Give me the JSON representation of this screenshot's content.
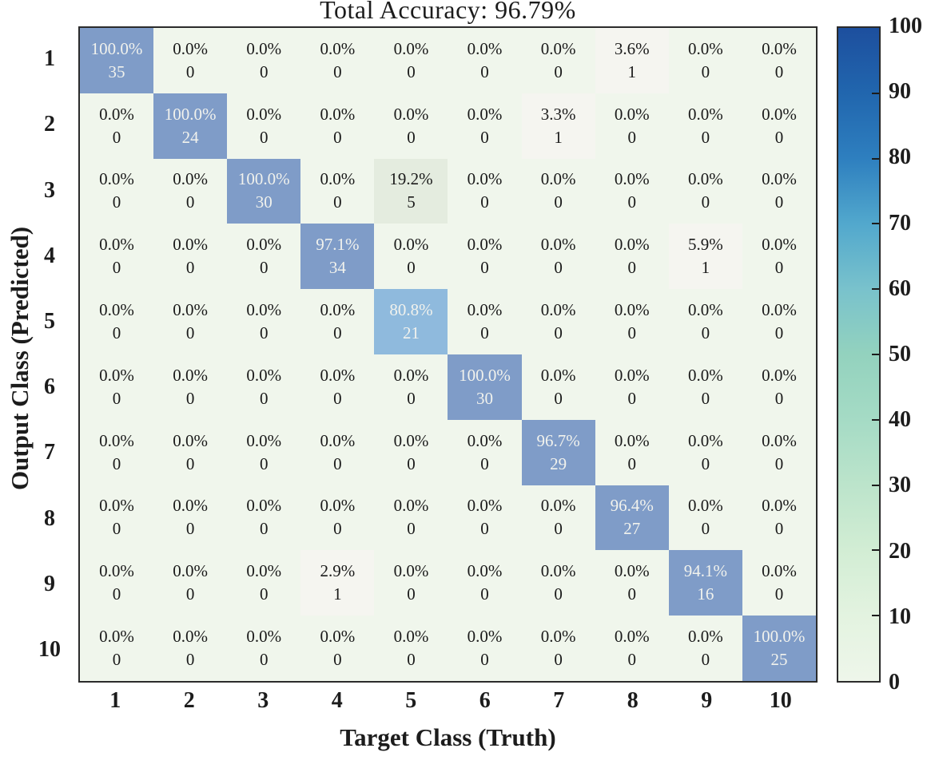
{
  "colors": {
    "diag_blue": "#7f9cc8",
    "mid_blue": "#8fbadd",
    "pale_green": "#e4ecdf",
    "tiny_offwhite": "#f5f5f0",
    "zero_bg": "#f0f6ec",
    "cell_text_light": "#f1f2ed",
    "cell_text_dark": "#1a1a1a",
    "colorbar_stops_top_to_bottom": [
      "#1d4f9e",
      "#2166ae",
      "#2e7fbf",
      "#52a8cd",
      "#79c2cc",
      "#93d2be",
      "#a5dbc5",
      "#bce4cb",
      "#d2edd4",
      "#e3f3e0",
      "#eef6ea"
    ]
  },
  "chart_data": {
    "type": "heatmap",
    "title": "Total Accuracy: 96.79%",
    "xlabel": "Target Class (Truth)",
    "ylabel": "Output Class (Predicted)",
    "x_tick_labels": [
      "1",
      "2",
      "3",
      "4",
      "5",
      "6",
      "7",
      "8",
      "9",
      "10"
    ],
    "y_tick_labels": [
      "1",
      "2",
      "3",
      "4",
      "5",
      "6",
      "7",
      "8",
      "9",
      "10"
    ],
    "colorbar": {
      "min": 0,
      "max": 100,
      "ticks": [
        0,
        10,
        20,
        30,
        40,
        50,
        60,
        70,
        80,
        90,
        100
      ]
    },
    "cells": [
      [
        {
          "p": "100.0%",
          "n": "35",
          "v": 100
        },
        {
          "p": "0.0%",
          "n": "0",
          "v": 0
        },
        {
          "p": "0.0%",
          "n": "0",
          "v": 0
        },
        {
          "p": "0.0%",
          "n": "0",
          "v": 0
        },
        {
          "p": "0.0%",
          "n": "0",
          "v": 0
        },
        {
          "p": "0.0%",
          "n": "0",
          "v": 0
        },
        {
          "p": "0.0%",
          "n": "0",
          "v": 0
        },
        {
          "p": "3.6%",
          "n": "1",
          "v": 3.6
        },
        {
          "p": "0.0%",
          "n": "0",
          "v": 0
        },
        {
          "p": "0.0%",
          "n": "0",
          "v": 0
        }
      ],
      [
        {
          "p": "0.0%",
          "n": "0",
          "v": 0
        },
        {
          "p": "100.0%",
          "n": "24",
          "v": 100
        },
        {
          "p": "0.0%",
          "n": "0",
          "v": 0
        },
        {
          "p": "0.0%",
          "n": "0",
          "v": 0
        },
        {
          "p": "0.0%",
          "n": "0",
          "v": 0
        },
        {
          "p": "0.0%",
          "n": "0",
          "v": 0
        },
        {
          "p": "3.3%",
          "n": "1",
          "v": 3.3
        },
        {
          "p": "0.0%",
          "n": "0",
          "v": 0
        },
        {
          "p": "0.0%",
          "n": "0",
          "v": 0
        },
        {
          "p": "0.0%",
          "n": "0",
          "v": 0
        }
      ],
      [
        {
          "p": "0.0%",
          "n": "0",
          "v": 0
        },
        {
          "p": "0.0%",
          "n": "0",
          "v": 0
        },
        {
          "p": "100.0%",
          "n": "30",
          "v": 100
        },
        {
          "p": "0.0%",
          "n": "0",
          "v": 0
        },
        {
          "p": "19.2%",
          "n": "5",
          "v": 19.2
        },
        {
          "p": "0.0%",
          "n": "0",
          "v": 0
        },
        {
          "p": "0.0%",
          "n": "0",
          "v": 0
        },
        {
          "p": "0.0%",
          "n": "0",
          "v": 0
        },
        {
          "p": "0.0%",
          "n": "0",
          "v": 0
        },
        {
          "p": "0.0%",
          "n": "0",
          "v": 0
        }
      ],
      [
        {
          "p": "0.0%",
          "n": "0",
          "v": 0
        },
        {
          "p": "0.0%",
          "n": "0",
          "v": 0
        },
        {
          "p": "0.0%",
          "n": "0",
          "v": 0
        },
        {
          "p": "97.1%",
          "n": "34",
          "v": 97.1
        },
        {
          "p": "0.0%",
          "n": "0",
          "v": 0
        },
        {
          "p": "0.0%",
          "n": "0",
          "v": 0
        },
        {
          "p": "0.0%",
          "n": "0",
          "v": 0
        },
        {
          "p": "0.0%",
          "n": "0",
          "v": 0
        },
        {
          "p": "5.9%",
          "n": "1",
          "v": 5.9
        },
        {
          "p": "0.0%",
          "n": "0",
          "v": 0
        }
      ],
      [
        {
          "p": "0.0%",
          "n": "0",
          "v": 0
        },
        {
          "p": "0.0%",
          "n": "0",
          "v": 0
        },
        {
          "p": "0.0%",
          "n": "0",
          "v": 0
        },
        {
          "p": "0.0%",
          "n": "0",
          "v": 0
        },
        {
          "p": "80.8%",
          "n": "21",
          "v": 80.8
        },
        {
          "p": "0.0%",
          "n": "0",
          "v": 0
        },
        {
          "p": "0.0%",
          "n": "0",
          "v": 0
        },
        {
          "p": "0.0%",
          "n": "0",
          "v": 0
        },
        {
          "p": "0.0%",
          "n": "0",
          "v": 0
        },
        {
          "p": "0.0%",
          "n": "0",
          "v": 0
        }
      ],
      [
        {
          "p": "0.0%",
          "n": "0",
          "v": 0
        },
        {
          "p": "0.0%",
          "n": "0",
          "v": 0
        },
        {
          "p": "0.0%",
          "n": "0",
          "v": 0
        },
        {
          "p": "0.0%",
          "n": "0",
          "v": 0
        },
        {
          "p": "0.0%",
          "n": "0",
          "v": 0
        },
        {
          "p": "100.0%",
          "n": "30",
          "v": 100
        },
        {
          "p": "0.0%",
          "n": "0",
          "v": 0
        },
        {
          "p": "0.0%",
          "n": "0",
          "v": 0
        },
        {
          "p": "0.0%",
          "n": "0",
          "v": 0
        },
        {
          "p": "0.0%",
          "n": "0",
          "v": 0
        }
      ],
      [
        {
          "p": "0.0%",
          "n": "0",
          "v": 0
        },
        {
          "p": "0.0%",
          "n": "0",
          "v": 0
        },
        {
          "p": "0.0%",
          "n": "0",
          "v": 0
        },
        {
          "p": "0.0%",
          "n": "0",
          "v": 0
        },
        {
          "p": "0.0%",
          "n": "0",
          "v": 0
        },
        {
          "p": "0.0%",
          "n": "0",
          "v": 0
        },
        {
          "p": "96.7%",
          "n": "29",
          "v": 96.7
        },
        {
          "p": "0.0%",
          "n": "0",
          "v": 0
        },
        {
          "p": "0.0%",
          "n": "0",
          "v": 0
        },
        {
          "p": "0.0%",
          "n": "0",
          "v": 0
        }
      ],
      [
        {
          "p": "0.0%",
          "n": "0",
          "v": 0
        },
        {
          "p": "0.0%",
          "n": "0",
          "v": 0
        },
        {
          "p": "0.0%",
          "n": "0",
          "v": 0
        },
        {
          "p": "0.0%",
          "n": "0",
          "v": 0
        },
        {
          "p": "0.0%",
          "n": "0",
          "v": 0
        },
        {
          "p": "0.0%",
          "n": "0",
          "v": 0
        },
        {
          "p": "0.0%",
          "n": "0",
          "v": 0
        },
        {
          "p": "96.4%",
          "n": "27",
          "v": 96.4
        },
        {
          "p": "0.0%",
          "n": "0",
          "v": 0
        },
        {
          "p": "0.0%",
          "n": "0",
          "v": 0
        }
      ],
      [
        {
          "p": "0.0%",
          "n": "0",
          "v": 0
        },
        {
          "p": "0.0%",
          "n": "0",
          "v": 0
        },
        {
          "p": "0.0%",
          "n": "0",
          "v": 0
        },
        {
          "p": "2.9%",
          "n": "1",
          "v": 2.9
        },
        {
          "p": "0.0%",
          "n": "0",
          "v": 0
        },
        {
          "p": "0.0%",
          "n": "0",
          "v": 0
        },
        {
          "p": "0.0%",
          "n": "0",
          "v": 0
        },
        {
          "p": "0.0%",
          "n": "0",
          "v": 0
        },
        {
          "p": "94.1%",
          "n": "16",
          "v": 94.1
        },
        {
          "p": "0.0%",
          "n": "0",
          "v": 0
        }
      ],
      [
        {
          "p": "0.0%",
          "n": "0",
          "v": 0
        },
        {
          "p": "0.0%",
          "n": "0",
          "v": 0
        },
        {
          "p": "0.0%",
          "n": "0",
          "v": 0
        },
        {
          "p": "0.0%",
          "n": "0",
          "v": 0
        },
        {
          "p": "0.0%",
          "n": "0",
          "v": 0
        },
        {
          "p": "0.0%",
          "n": "0",
          "v": 0
        },
        {
          "p": "0.0%",
          "n": "0",
          "v": 0
        },
        {
          "p": "0.0%",
          "n": "0",
          "v": 0
        },
        {
          "p": "0.0%",
          "n": "0",
          "v": 0
        },
        {
          "p": "100.0%",
          "n": "25",
          "v": 100
        }
      ]
    ]
  }
}
